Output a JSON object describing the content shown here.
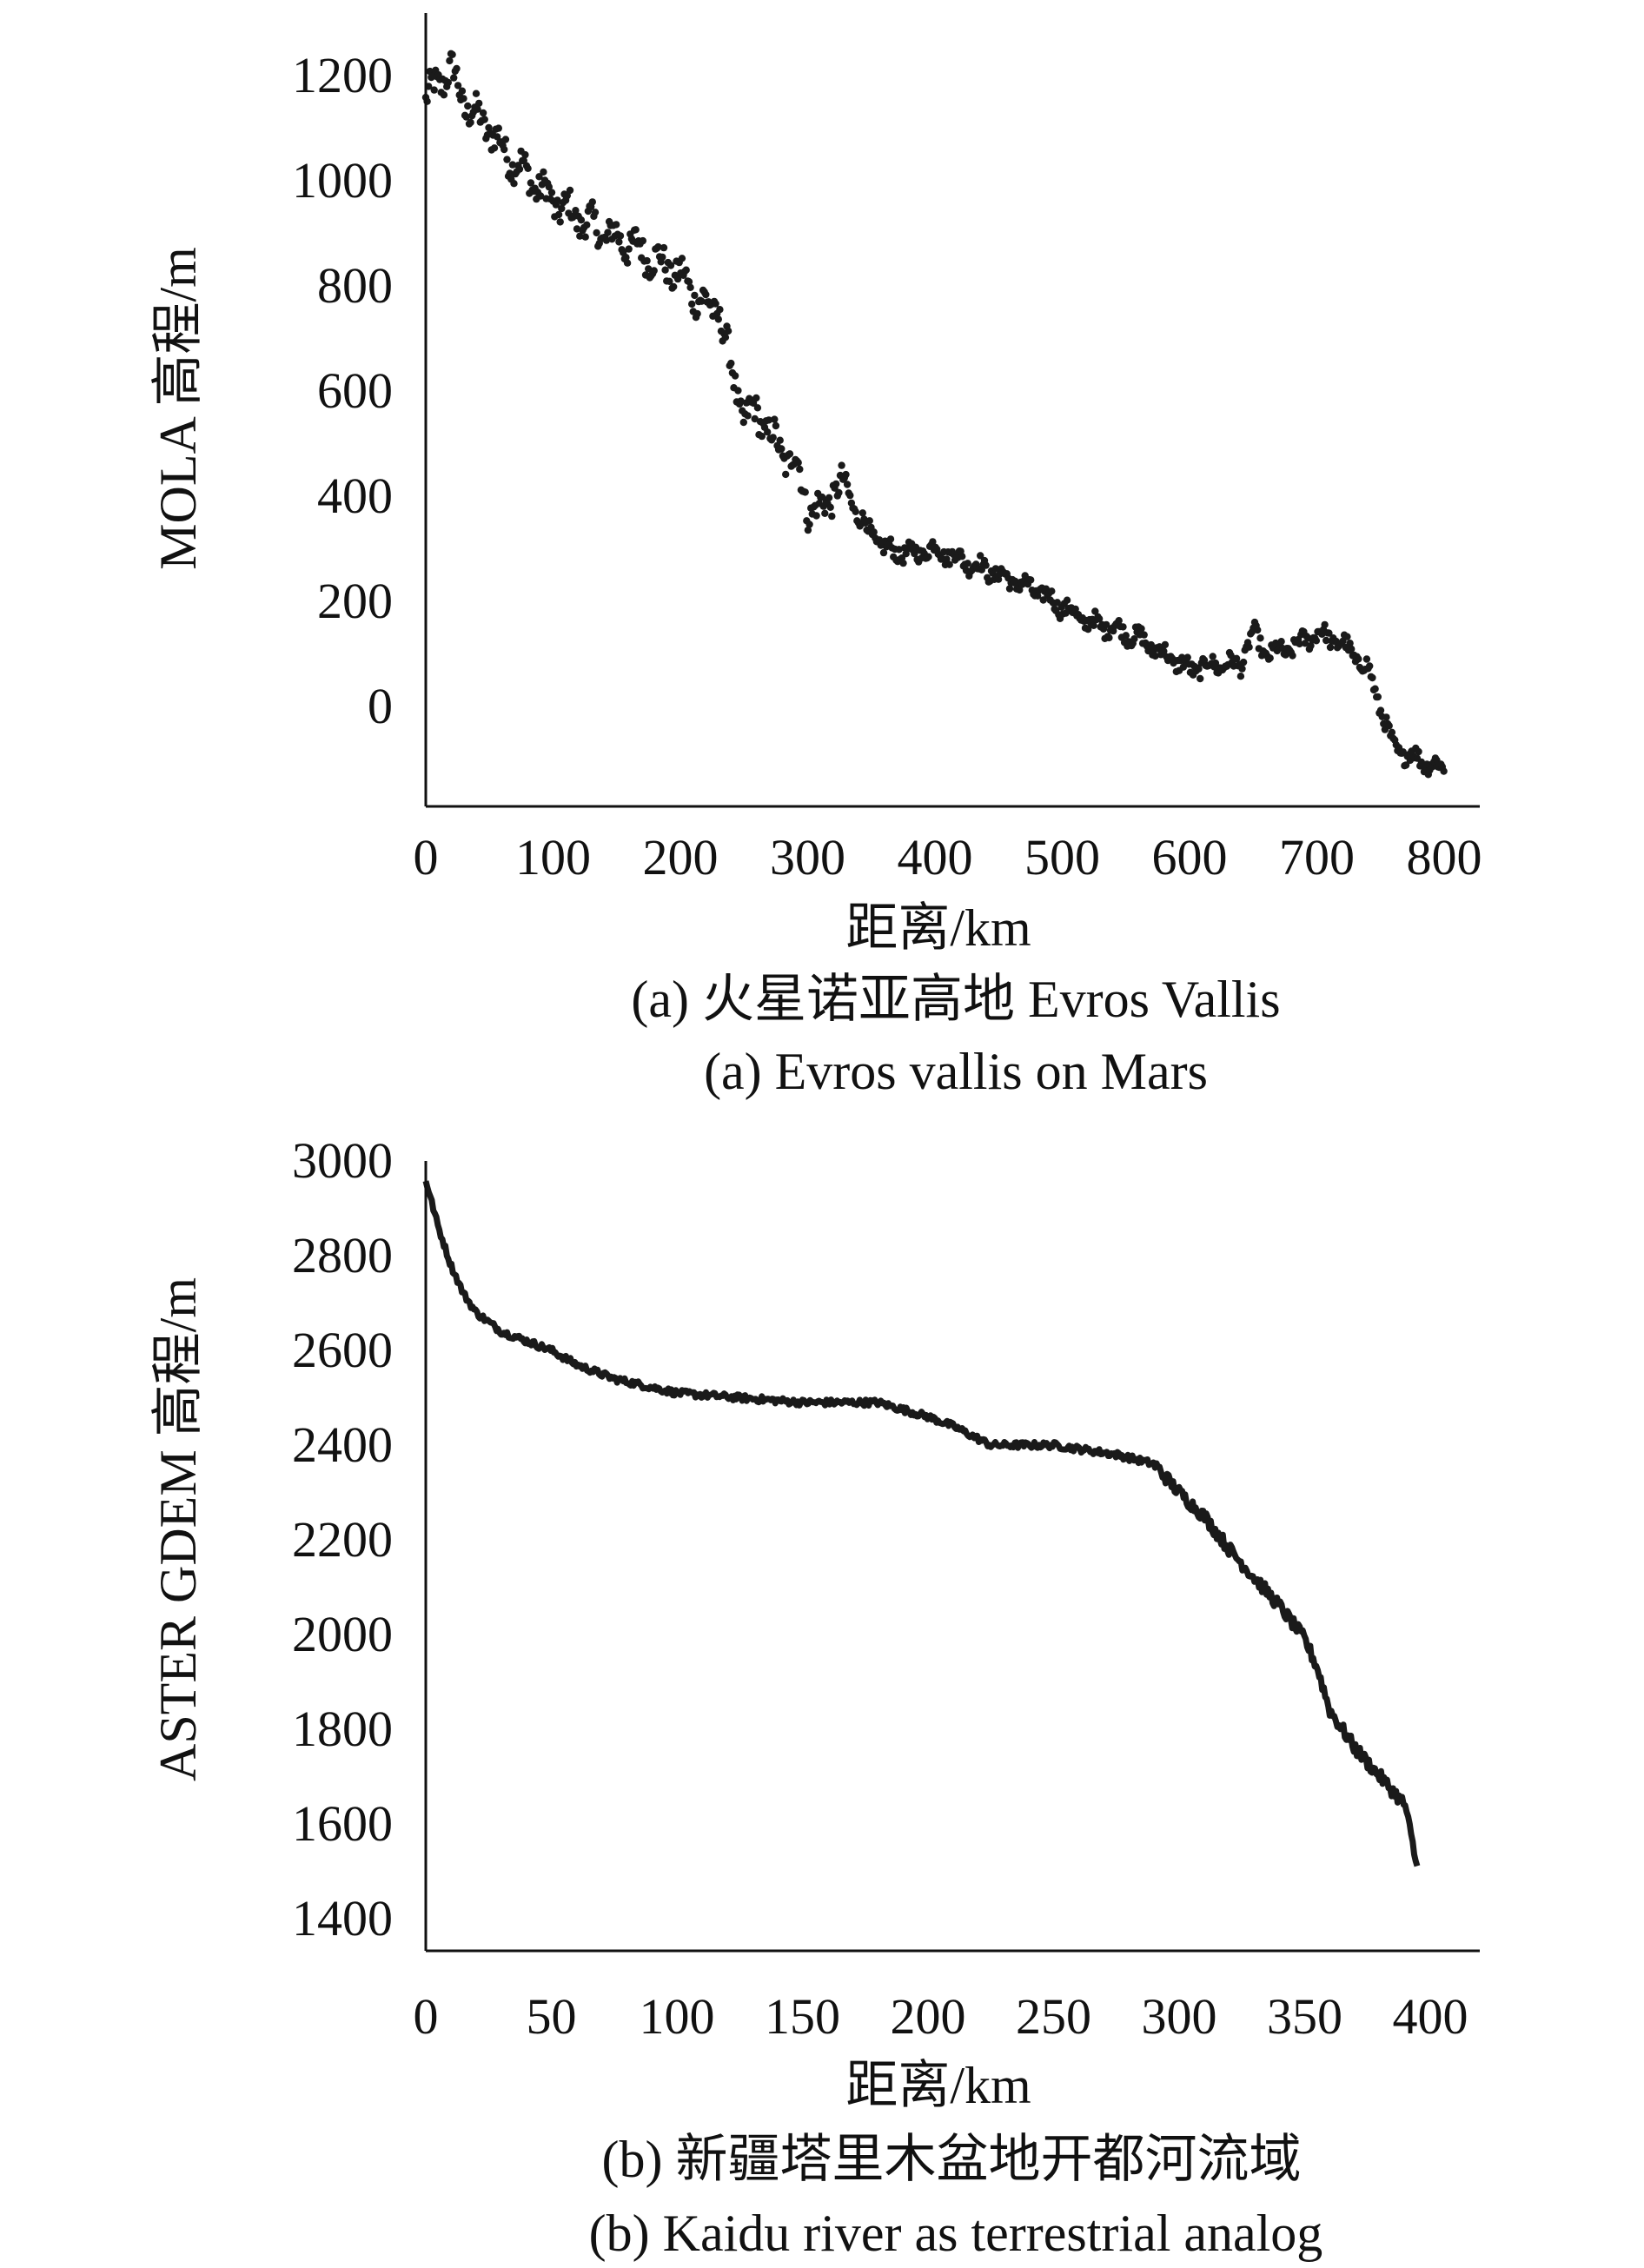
{
  "chart_data": [
    {
      "type": "scatter",
      "marker": "dot",
      "color": "#1a1a1a",
      "ylabel": "MOLA 高程/m",
      "xlabel": "距离/km",
      "caption_cn": "(a) 火星诺亚高地 Evros Vallis",
      "caption_en": "(a) Evros vallis on Mars",
      "xlim": [
        0,
        800
      ],
      "ylim": [
        -200,
        1300
      ],
      "xticks": [
        0,
        100,
        200,
        300,
        400,
        500,
        600,
        700,
        800
      ],
      "yticks": [
        0,
        200,
        400,
        600,
        800,
        1000,
        1200
      ],
      "profile_x": [
        0,
        10,
        20,
        30,
        40,
        50,
        60,
        80,
        100,
        120,
        140,
        160,
        180,
        200,
        210,
        220,
        230,
        240,
        250,
        260,
        270,
        280,
        290,
        300,
        310,
        320,
        330,
        340,
        350,
        360,
        380,
        400,
        420,
        440,
        460,
        480,
        500,
        520,
        540,
        560,
        580,
        600,
        620,
        640,
        650,
        660,
        680,
        700,
        720,
        740,
        750,
        760,
        780,
        800
      ],
      "profile_y": [
        1150,
        1190,
        1210,
        1150,
        1120,
        1100,
        1060,
        1010,
        960,
        930,
        900,
        880,
        850,
        820,
        790,
        760,
        760,
        640,
        550,
        560,
        520,
        480,
        470,
        380,
        370,
        410,
        420,
        360,
        330,
        300,
        290,
        300,
        280,
        260,
        240,
        220,
        190,
        160,
        150,
        130,
        100,
        70,
        80,
        80,
        140,
        100,
        110,
        140,
        120,
        70,
        0,
        -80,
        -100,
        -120
      ]
    },
    {
      "type": "line",
      "color": "#1a1a1a",
      "ylabel": "ASTER GDEM 高程/m",
      "xlabel": "距离/km",
      "caption_cn": "(b) 新疆塔里木盆地开都河流域",
      "caption_en": "(b) Kaidu river as terrestrial analog",
      "xlim": [
        0,
        420
      ],
      "ylim": [
        1350,
        3000
      ],
      "xticks": [
        0,
        50,
        100,
        150,
        200,
        250,
        300,
        350,
        400
      ],
      "yticks": [
        1400,
        1600,
        1800,
        2000,
        2200,
        2400,
        2600,
        2800,
        3000
      ],
      "profile_x": [
        0,
        5,
        10,
        15,
        20,
        30,
        40,
        50,
        60,
        75,
        100,
        125,
        150,
        175,
        180,
        200,
        210,
        225,
        250,
        275,
        290,
        300,
        310,
        320,
        330,
        340,
        350,
        355,
        360,
        370,
        380,
        390,
        395
      ],
      "profile_y": [
        2960,
        2860,
        2780,
        2720,
        2680,
        2640,
        2620,
        2600,
        2570,
        2540,
        2510,
        2500,
        2490,
        2490,
        2490,
        2460,
        2440,
        2400,
        2400,
        2380,
        2360,
        2300,
        2250,
        2180,
        2120,
        2060,
        1990,
        1930,
        1840,
        1760,
        1700,
        1640,
        1500
      ]
    }
  ]
}
